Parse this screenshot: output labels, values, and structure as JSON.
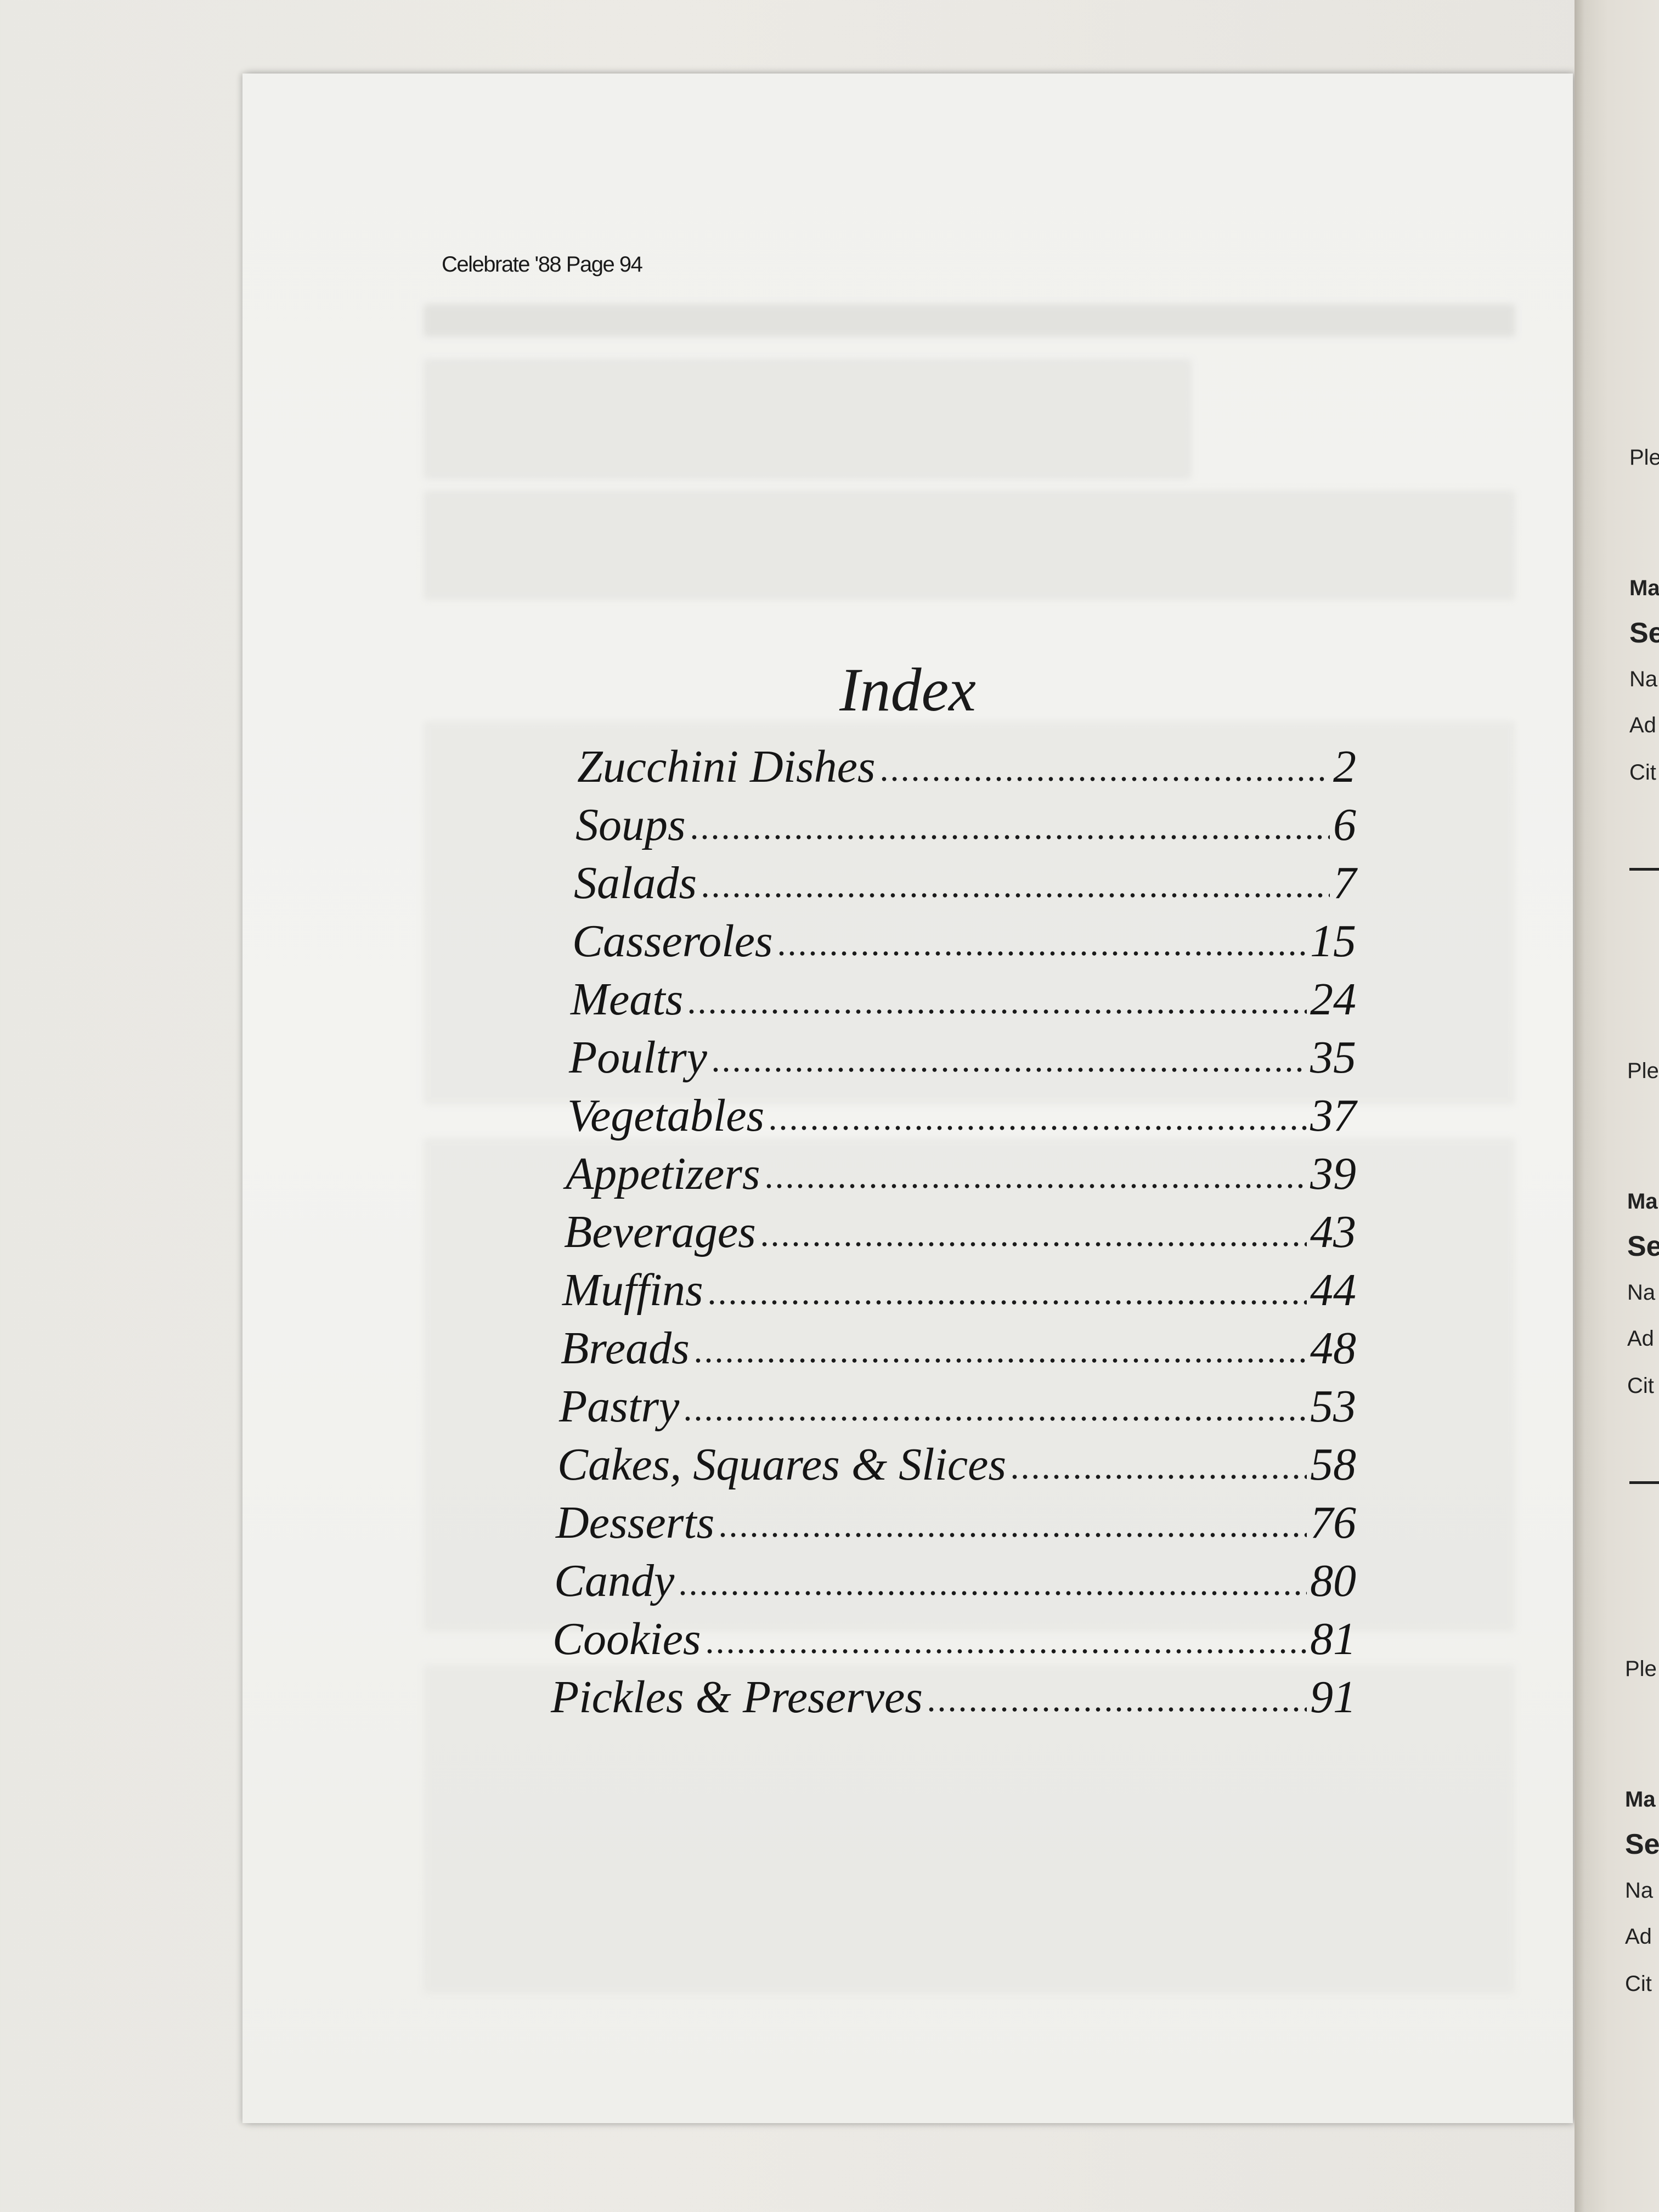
{
  "header": "Celebrate '88 Page 94",
  "title": "Index",
  "entries": [
    {
      "label": "Zucchini Dishes",
      "page": "2"
    },
    {
      "label": "Soups",
      "page": "6"
    },
    {
      "label": "Salads",
      "page": "7"
    },
    {
      "label": "Casseroles",
      "page": "15"
    },
    {
      "label": "Meats",
      "page": "24"
    },
    {
      "label": "Poultry",
      "page": "35"
    },
    {
      "label": "Vegetables",
      "page": "37"
    },
    {
      "label": "Appetizers",
      "page": "39"
    },
    {
      "label": "Beverages",
      "page": "43"
    },
    {
      "label": "Muffins",
      "page": "44"
    },
    {
      "label": "Breads",
      "page": "48"
    },
    {
      "label": "Pastry",
      "page": "53"
    },
    {
      "label": "Cakes, Squares & Slices",
      "page": "58"
    },
    {
      "label": "Desserts",
      "page": "76"
    },
    {
      "label": "Candy",
      "page": "80"
    },
    {
      "label": "Cookies",
      "page": "81"
    },
    {
      "label": "Pickles & Preserves",
      "page": "91"
    }
  ],
  "right_page": {
    "forms": [
      {
        "please": "Ple",
        "mail": "Ma",
        "send": "Se",
        "name": "Na",
        "address": "Ad",
        "city": "Cit"
      },
      {
        "please": "Ple",
        "mail": "Ma",
        "send": "Se",
        "name": "Na",
        "address": "Ad",
        "city": "Cit"
      },
      {
        "please": "Ple",
        "mail": "Ma",
        "send": "Se",
        "name": "Na",
        "address": "Ad",
        "city": "Cit"
      }
    ]
  }
}
